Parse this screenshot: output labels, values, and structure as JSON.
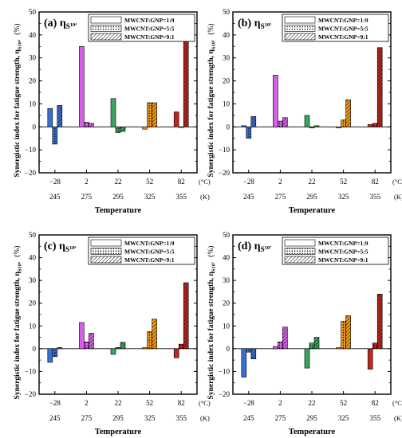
{
  "chart_data": [
    {
      "type": "bar",
      "panel_label": "(a)",
      "title_symbol": "η",
      "title_sub": "S",
      "title_sup": "10⁴",
      "ylabel": "Synergistic index for fatigue strength, η",
      "ylabel_sub": "S10⁴",
      "ylabel_unit": "(%)",
      "xlabel": "Temperature",
      "categories_c": [
        "−28",
        "2",
        "22",
        "52",
        "82"
      ],
      "categories_k": [
        "245",
        "275",
        "295",
        "325",
        "355"
      ],
      "unit_c": "(°C)",
      "unit_k": "(K)",
      "ylim": [
        -20,
        50
      ],
      "yticks": [
        -20,
        -10,
        0,
        10,
        20,
        30,
        40,
        50
      ],
      "series": [
        {
          "name": "MWCNT:GNP=1:9",
          "values": [
            8,
            35,
            12.3,
            -1,
            6.5
          ]
        },
        {
          "name": "MWCNT:GNP=5:5",
          "values": [
            -7.5,
            2,
            -2.5,
            10.5,
            0
          ]
        },
        {
          "name": "MWCNT:GNP=9:1",
          "values": [
            9.3,
            1.5,
            -2,
            10.5,
            40
          ]
        }
      ]
    },
    {
      "type": "bar",
      "panel_label": "(b)",
      "title_symbol": "η",
      "title_sub": "S",
      "title_sup": "10⁵",
      "ylabel": "Synergistic index for fatigue strength, η",
      "ylabel_sub": "S10⁵",
      "ylabel_unit": "(%)",
      "xlabel": "Temperature",
      "categories_c": [
        "−28",
        "2",
        "22",
        "52",
        "82"
      ],
      "categories_k": [
        "245",
        "275",
        "295",
        "325",
        "355"
      ],
      "unit_c": "(°C)",
      "unit_k": "(K)",
      "ylim": [
        -20,
        50
      ],
      "yticks": [
        -20,
        -10,
        0,
        10,
        20,
        30,
        40,
        50
      ],
      "series": [
        {
          "name": "MWCNT:GNP=1:9",
          "values": [
            0.5,
            22.5,
            5,
            -0.5,
            1
          ]
        },
        {
          "name": "MWCNT:GNP=5:5",
          "values": [
            -5,
            2.5,
            -0.5,
            3,
            1.5
          ]
        },
        {
          "name": "MWCNT:GNP=9:1",
          "values": [
            4.5,
            4,
            0.5,
            11.8,
            34.5
          ]
        }
      ]
    },
    {
      "type": "bar",
      "panel_label": "(c)",
      "title_symbol": "η",
      "title_sub": "S",
      "title_sup": "10⁶",
      "ylabel": "Synergistic index for fatigue strength, η",
      "ylabel_sub": "S10⁶",
      "ylabel_unit": "(%)",
      "xlabel": "Temperature",
      "categories_c": [
        "−28",
        "2",
        "22",
        "52",
        "82"
      ],
      "categories_k": [
        "245",
        "275",
        "295",
        "325",
        "355"
      ],
      "unit_c": "(°C)",
      "unit_k": "(K)",
      "ylim": [
        -20,
        50
      ],
      "yticks": [
        -20,
        -10,
        0,
        10,
        20,
        30,
        40,
        50
      ],
      "series": [
        {
          "name": "MWCNT:GNP=1:9",
          "values": [
            -6,
            11.5,
            -2.5,
            0.5,
            -4
          ]
        },
        {
          "name": "MWCNT:GNP=5:5",
          "values": [
            -3.5,
            3,
            0.5,
            7.5,
            2
          ]
        },
        {
          "name": "MWCNT:GNP=9:1",
          "values": [
            0.5,
            6.8,
            2.8,
            13,
            29
          ]
        }
      ]
    },
    {
      "type": "bar",
      "panel_label": "(d)",
      "title_symbol": "η",
      "title_sub": "S",
      "title_sup": "10⁷",
      "ylabel": "Synergistic index for fatigue strength, η",
      "ylabel_sub": "S10⁷",
      "ylabel_unit": "(%)",
      "xlabel": "Temperature",
      "categories_c": [
        "−28",
        "2",
        "22",
        "52",
        "82"
      ],
      "categories_k": [
        "245",
        "275",
        "295",
        "325",
        "355"
      ],
      "unit_c": "(°C)",
      "unit_k": "(K)",
      "ylim": [
        -20,
        50
      ],
      "yticks": [
        -20,
        -10,
        0,
        10,
        20,
        30,
        40,
        50
      ],
      "series": [
        {
          "name": "MWCNT:GNP=1:9",
          "values": [
            -12.5,
            1,
            -8.5,
            0.5,
            -9
          ]
        },
        {
          "name": "MWCNT:GNP=5:5",
          "values": [
            -1.5,
            3,
            2.5,
            12,
            2.5
          ]
        },
        {
          "name": "MWCNT:GNP=9:1",
          "values": [
            -4.5,
            9.5,
            5,
            14.5,
            24
          ]
        }
      ]
    }
  ],
  "colors": {
    "categories": [
      "#3a6fd0",
      "#d461e6",
      "#3aa45e",
      "#f09a1c",
      "#c0251f"
    ]
  }
}
